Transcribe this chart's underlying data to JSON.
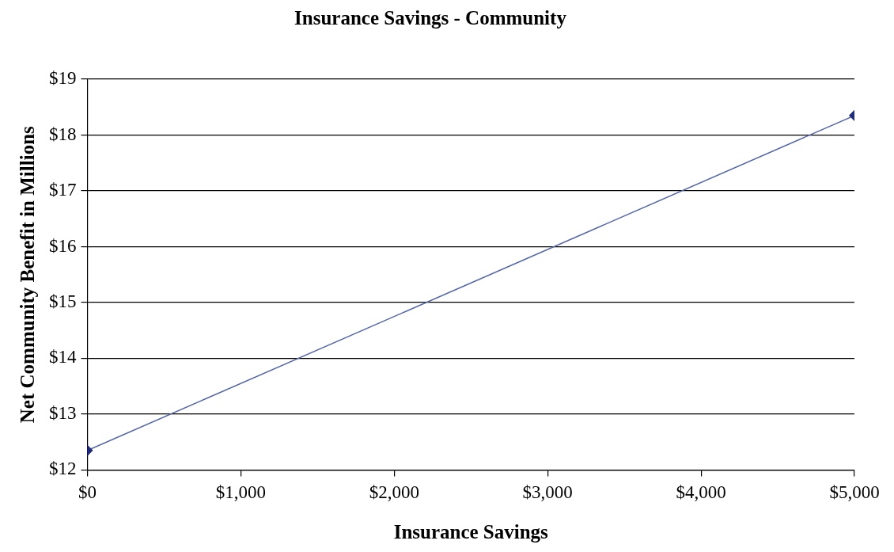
{
  "chart_data": {
    "type": "line",
    "title": "Insurance Savings - Community",
    "xlabel": "Insurance Savings",
    "ylabel": "Net Community Benefit in Millions",
    "x": [
      0,
      5000
    ],
    "series": [
      {
        "color": "#5567a8",
        "values": [
          12.35,
          18.35
        ]
      }
    ],
    "xlim": [
      0,
      5000
    ],
    "xticks": [
      {
        "value": 0,
        "label": "$0"
      },
      {
        "value": 1000,
        "label": "$1,000"
      },
      {
        "value": 2000,
        "label": "$2,000"
      },
      {
        "value": 3000,
        "label": "$3,000"
      },
      {
        "value": 4000,
        "label": "$4,000"
      },
      {
        "value": 5000,
        "label": "$5,000"
      }
    ],
    "ylim": [
      12,
      19
    ],
    "yticks": [
      {
        "value": 12,
        "label": "$12"
      },
      {
        "value": 13,
        "label": "$13"
      },
      {
        "value": 14,
        "label": "$14"
      },
      {
        "value": 15,
        "label": "$15"
      },
      {
        "value": 16,
        "label": "$16"
      },
      {
        "value": 17,
        "label": "$17"
      },
      {
        "value": 18,
        "label": "$18"
      },
      {
        "value": 19,
        "label": "$19"
      }
    ],
    "grid": "y",
    "marker": "diamond",
    "line_style": "solid",
    "legend": false
  }
}
